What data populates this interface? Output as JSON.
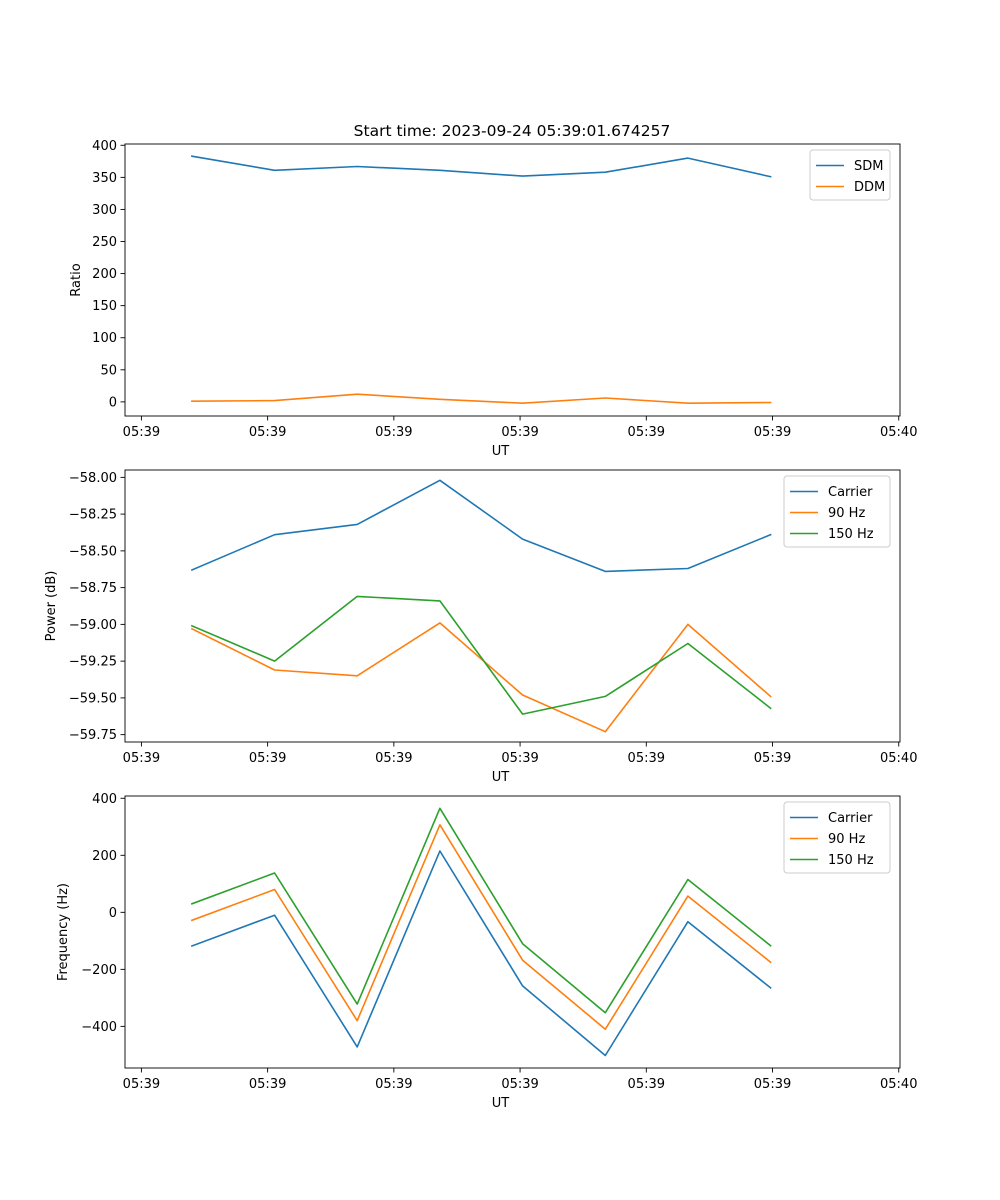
{
  "figure": {
    "title": "Start time: 2023-09-24 05:39:01.674257"
  },
  "chart_data": [
    {
      "type": "line",
      "title": "Start time: 2023-09-24 05:39:01.674257",
      "xlabel": "UT",
      "ylabel": "Ratio",
      "x": [
        0.4,
        1.055,
        1.71,
        2.365,
        3.02,
        3.675,
        4.33,
        4.985
      ],
      "x_tick_values": [
        0,
        1,
        2,
        3,
        4,
        5,
        6
      ],
      "x_tick_labels": [
        "05:39",
        "05:39",
        "05:39",
        "05:39",
        "05:39",
        "05:39",
        "05:40"
      ],
      "xlim": [
        -0.13,
        6.01
      ],
      "ylim": [
        -22,
        402
      ],
      "y_ticks": [
        0,
        50,
        100,
        150,
        200,
        250,
        300,
        350,
        400
      ],
      "y_tick_labels": [
        "0",
        "50",
        "100",
        "150",
        "200",
        "250",
        "300",
        "350",
        "400"
      ],
      "legend_position": "top-right",
      "series": [
        {
          "name": "SDM",
          "color": "#1f77b4",
          "values": [
            383,
            361,
            367,
            361,
            352,
            358,
            380,
            351
          ]
        },
        {
          "name": "DDM",
          "color": "#ff7f0e",
          "values": [
            1,
            2,
            12,
            4,
            -2,
            6,
            -2,
            -1
          ]
        }
      ]
    },
    {
      "type": "line",
      "title": "",
      "xlabel": "UT",
      "ylabel": "Power (dB)",
      "x": [
        0.4,
        1.055,
        1.71,
        2.365,
        3.02,
        3.675,
        4.33,
        4.985
      ],
      "x_tick_values": [
        0,
        1,
        2,
        3,
        4,
        5,
        6
      ],
      "x_tick_labels": [
        "05:39",
        "05:39",
        "05:39",
        "05:39",
        "05:39",
        "05:39",
        "05:40"
      ],
      "xlim": [
        -0.13,
        6.01
      ],
      "ylim": [
        -59.8,
        -57.95
      ],
      "y_ticks": [
        -58.0,
        -58.25,
        -58.5,
        -58.75,
        -59.0,
        -59.25,
        -59.5,
        -59.75
      ],
      "y_tick_labels": [
        "−58.00",
        "−58.25",
        "−58.50",
        "−58.75",
        "−59.00",
        "−59.25",
        "−59.50",
        "−59.75"
      ],
      "legend_position": "top-right",
      "series": [
        {
          "name": "Carrier",
          "color": "#1f77b4",
          "values": [
            -58.63,
            -58.39,
            -58.32,
            -58.02,
            -58.42,
            -58.64,
            -58.62,
            -58.39
          ]
        },
        {
          "name": "90 Hz",
          "color": "#ff7f0e",
          "values": [
            -59.03,
            -59.31,
            -59.35,
            -58.99,
            -59.48,
            -59.73,
            -59.0,
            -59.49
          ]
        },
        {
          "name": "150 Hz",
          "color": "#2ca02c",
          "values": [
            -59.01,
            -59.25,
            -58.81,
            -58.84,
            -59.61,
            -59.49,
            -59.13,
            -59.57
          ]
        }
      ]
    },
    {
      "type": "line",
      "title": "",
      "xlabel": "UT",
      "ylabel": "Frequency (Hz)",
      "x": [
        0.4,
        1.055,
        1.71,
        2.365,
        3.02,
        3.675,
        4.33,
        4.985
      ],
      "x_tick_values": [
        0,
        1,
        2,
        3,
        4,
        5,
        6
      ],
      "x_tick_labels": [
        "05:39",
        "05:39",
        "05:39",
        "05:39",
        "05:39",
        "05:39",
        "05:40"
      ],
      "xlim": [
        -0.13,
        6.01
      ],
      "ylim": [
        -546,
        408
      ],
      "y_ticks": [
        -400,
        -200,
        0,
        200,
        400
      ],
      "y_tick_labels": [
        "−400",
        "−200",
        "0",
        "200",
        "400"
      ],
      "legend_position": "top-right",
      "series": [
        {
          "name": "Carrier",
          "color": "#1f77b4",
          "values": [
            -118,
            -10,
            -472,
            215,
            -258,
            -502,
            -33,
            -265
          ]
        },
        {
          "name": "90 Hz",
          "color": "#ff7f0e",
          "values": [
            -28,
            80,
            -380,
            307,
            -168,
            -410,
            57,
            -175
          ]
        },
        {
          "name": "150 Hz",
          "color": "#2ca02c",
          "values": [
            30,
            138,
            -322,
            365,
            -110,
            -352,
            115,
            -117
          ]
        }
      ]
    }
  ]
}
